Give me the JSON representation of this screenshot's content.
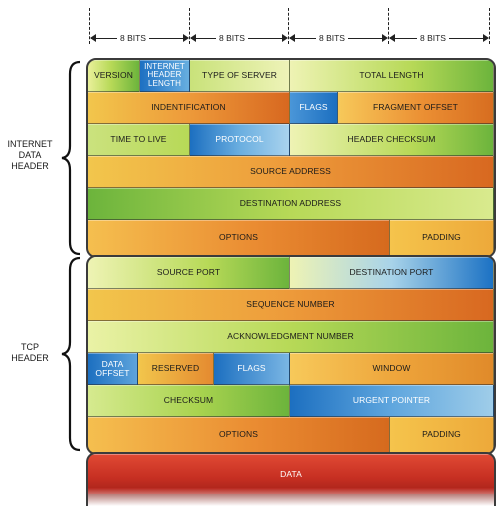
{
  "bits_ruler": [
    "8 BITS",
    "8 BITS",
    "8 BITS",
    "8 BITS"
  ],
  "side_labels": {
    "ip": [
      "INTERNET",
      "DATA",
      "HEADER"
    ],
    "tcp": [
      "TCP",
      "HEADER"
    ]
  },
  "ip_header": {
    "version": "VERSION",
    "ihl": [
      "INTERNET",
      "HEADER",
      "LENGTH"
    ],
    "type_of_server": "TYPE OF SERVER",
    "total_length": "TOTAL LENGTH",
    "identification": "INDENTIFICATION",
    "flags": "FLAGS",
    "fragment_offset": "FRAGMENT OFFSET",
    "time_to_live": "TIME TO LIVE",
    "protocol": "PROTOCOL",
    "header_checksum": "HEADER CHECKSUM",
    "source_address": "SOURCE ADDRESS",
    "destination_address": "DESTINATION ADDRESS",
    "options": "OPTIONS",
    "padding": "PADDING"
  },
  "tcp_header": {
    "source_port": "SOURCE PORT",
    "destination_port": "DESTINATION PORT",
    "sequence_number": "SEQUENCE NUMBER",
    "acknowledgment_number": "ACKNOWLEDGMENT NUMBER",
    "data_offset": [
      "DATA",
      "OFFSET"
    ],
    "reserved": "RESERVED",
    "flags": "FLAGS",
    "window": "WINDOW",
    "checksum": "CHECKSUM",
    "urgent_pointer": "URGENT POINTER",
    "options": "OPTIONS",
    "padding": "PADDING"
  },
  "data": {
    "label": "DATA"
  },
  "colors": {
    "green": "#6cb43c",
    "blue": "#1c72c4",
    "orange": "#d86820",
    "yellow": "#f2c64c",
    "red": "#c62f22",
    "border": "#3b3b3b"
  }
}
